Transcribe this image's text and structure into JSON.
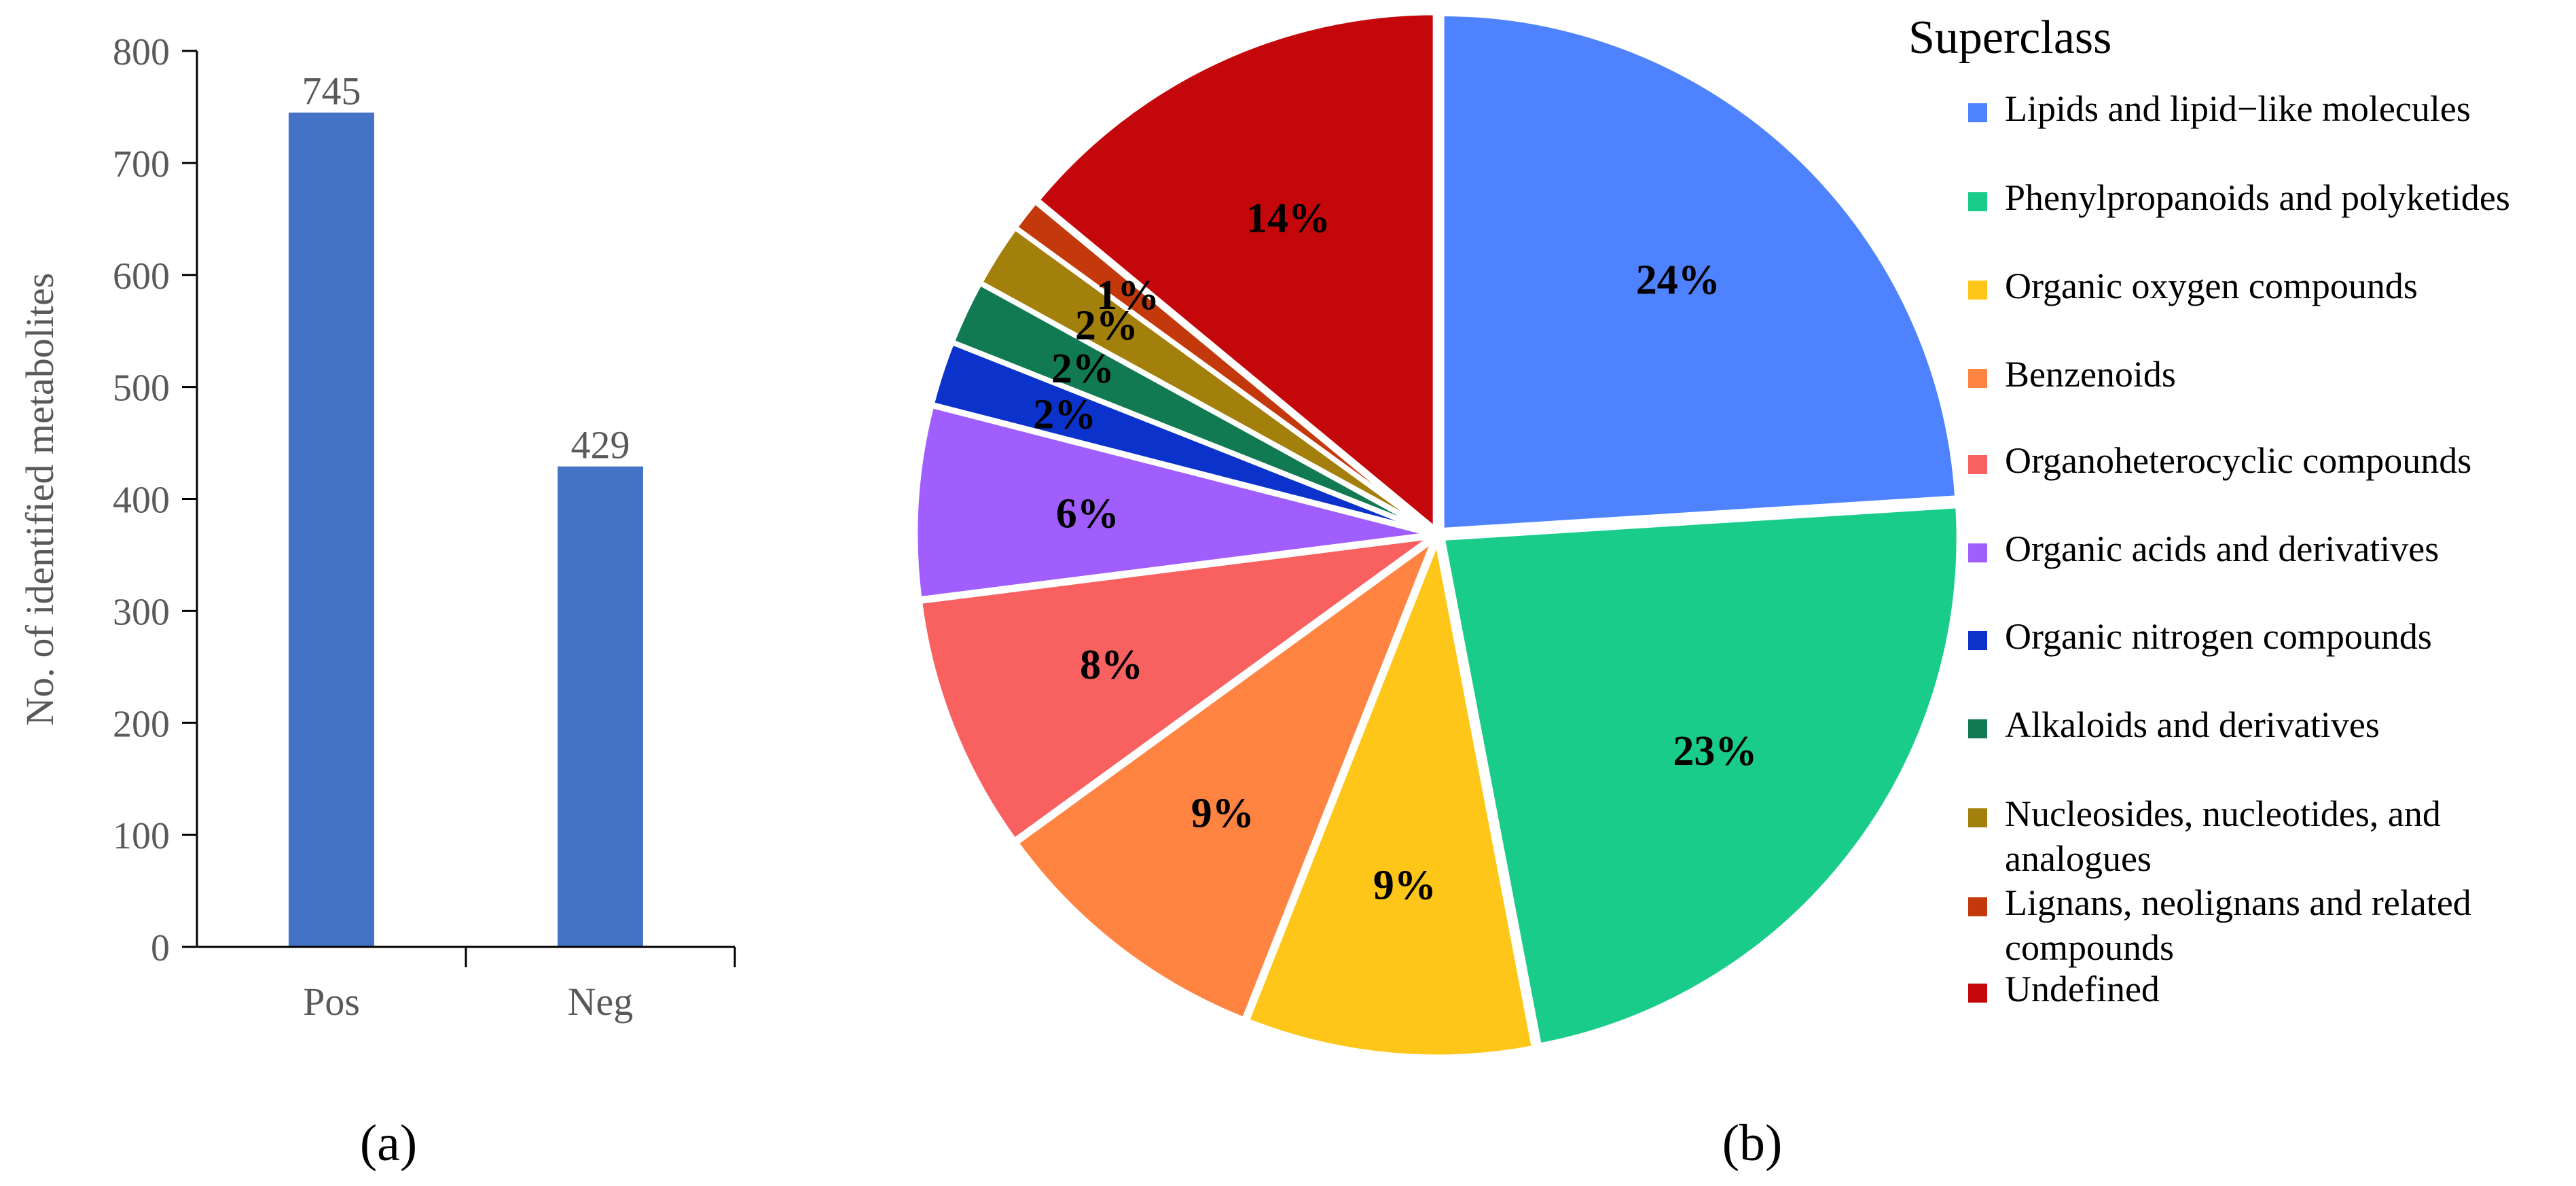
{
  "chart_data": [
    {
      "panel": "(a)",
      "type": "bar",
      "ylabel": "No. of identified metabolites",
      "categories": [
        "Pos",
        "Neg"
      ],
      "values": [
        745,
        429
      ],
      "value_labels": [
        "745",
        "429"
      ],
      "ylim": [
        0,
        800
      ],
      "yticks": [
        "0",
        "100",
        "200",
        "300",
        "400",
        "500",
        "600",
        "700",
        "800"
      ],
      "color": "#4472C4",
      "grid": false
    },
    {
      "panel": "(b)",
      "type": "pie",
      "legend_title": "Superclass",
      "legend_position": "right",
      "slices": [
        {
          "name": "Lipids and lipid−like molecules",
          "name_lines": [
            "Lipids and lipid−like molecules"
          ],
          "value": 24,
          "label": "24%",
          "color": "#4E82FF"
        },
        {
          "name": "Phenylpropanoids and polyketides",
          "name_lines": [
            "Phenylpropanoids and polyketides"
          ],
          "value": 23,
          "label": "23%",
          "color": "#1ACC8A"
        },
        {
          "name": "Organic oxygen compounds",
          "name_lines": [
            "Organic oxygen compounds"
          ],
          "value": 9,
          "label": "9%",
          "color": "#FFC61A"
        },
        {
          "name": "Benzenoids",
          "name_lines": [
            "Benzenoids"
          ],
          "value": 9,
          "label": "9%",
          "color": "#FF8442"
        },
        {
          "name": "Organoheterocyclic compounds",
          "name_lines": [
            "Organoheterocyclic compounds"
          ],
          "value": 8,
          "label": "8%",
          "color": "#F96060"
        },
        {
          "name": "Organic acids and derivatives",
          "name_lines": [
            "Organic acids and derivatives"
          ],
          "value": 6,
          "label": "6%",
          "color": "#A05EFF"
        },
        {
          "name": "Organic nitrogen compounds",
          "name_lines": [
            "Organic nitrogen compounds"
          ],
          "value": 2,
          "label": "2%",
          "color": "#0B33CC"
        },
        {
          "name": "Alkaloids and derivatives",
          "name_lines": [
            "Alkaloids and derivatives"
          ],
          "value": 2,
          "label": "2%",
          "color": "#117A52"
        },
        {
          "name": "Nucleosides, nucleotides, and analogues",
          "name_lines": [
            "Nucleosides, nucleotides, and",
            "analogues"
          ],
          "value": 2,
          "label": "2%",
          "color": "#A37F0C"
        },
        {
          "name": "Lignans, neolignans and related compounds",
          "name_lines": [
            "Lignans, neolignans and related",
            "compounds"
          ],
          "value": 1,
          "label": "1%",
          "color": "#C4390B"
        },
        {
          "name": "Undefined",
          "name_lines": [
            "Undefined"
          ],
          "value": 14,
          "label": "14%",
          "color": "#C4070B"
        }
      ]
    }
  ]
}
